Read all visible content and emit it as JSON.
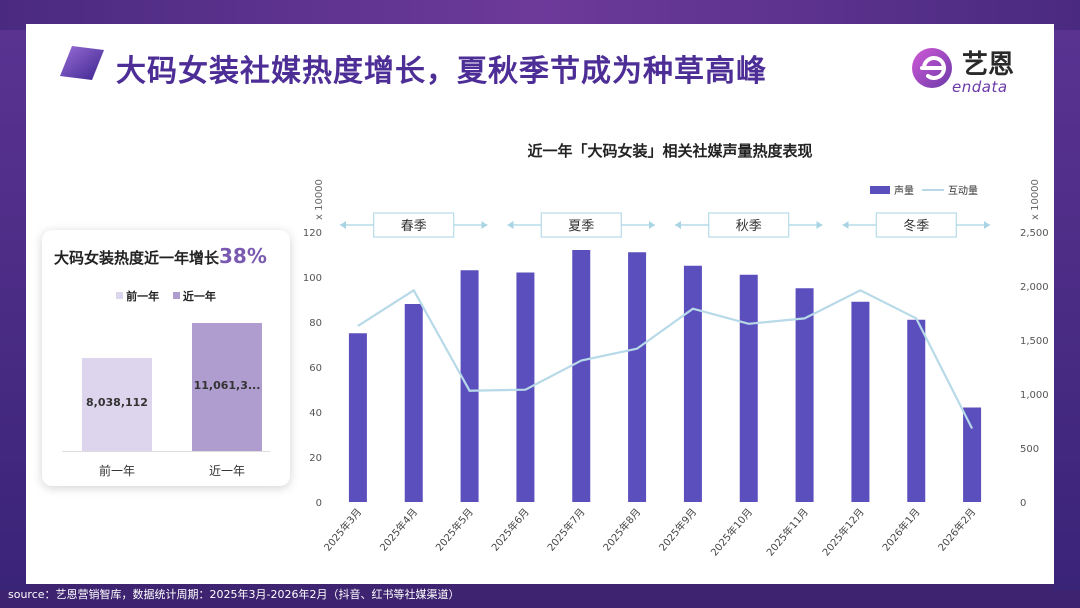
{
  "header": {
    "title": "大码女装社媒热度增长，夏秋季节成为种草高峰",
    "logo_cn": "艺恩",
    "logo_en": "endata"
  },
  "side_card": {
    "title_prefix": "大码女装热度近一年增长",
    "growth": "38%",
    "legend": [
      "前一年",
      "近一年"
    ],
    "bars": [
      {
        "category": "前一年",
        "label": "8,038,112",
        "value": 8038112,
        "color": "#ddd4ee"
      },
      {
        "category": "近一年",
        "label": "11,061,3...",
        "value": 11061300,
        "color": "#b09dd0"
      }
    ]
  },
  "chart_data": {
    "type": "bar",
    "title": "近一年「大码女装」相关社媒声量热度表现",
    "categories": [
      "2025年3月",
      "2025年4月",
      "2025年5月",
      "2025年6月",
      "2025年7月",
      "2025年8月",
      "2025年9月",
      "2025年10月",
      "2025年11月",
      "2025年12月",
      "2026年1月",
      "2026年2月"
    ],
    "series": [
      {
        "name": "声量",
        "type": "bar",
        "axis": "left",
        "color": "#5b4fbe",
        "values": [
          75,
          88,
          103,
          102,
          112,
          111,
          105,
          101,
          95,
          89,
          81,
          42
        ]
      },
      {
        "name": "互动量",
        "type": "line",
        "axis": "right",
        "color": "#b7d9e8",
        "values": [
          1630,
          1960,
          1030,
          1040,
          1310,
          1420,
          1790,
          1650,
          1700,
          1960,
          1700,
          680
        ]
      }
    ],
    "ylim": [
      0,
      120
    ],
    "yticks": [
      0,
      20,
      40,
      60,
      80,
      100,
      120
    ],
    "y2lim": [
      0,
      2500
    ],
    "y2ticks": [
      "0",
      "500",
      "1,000",
      "1,500",
      "2,000",
      "2,500"
    ],
    "ylabel": "x 10000",
    "y2label": "x 10000",
    "seasons": [
      {
        "label": "春季",
        "start": 0,
        "end": 2
      },
      {
        "label": "夏季",
        "start": 3,
        "end": 5
      },
      {
        "label": "秋季",
        "start": 6,
        "end": 8
      },
      {
        "label": "冬季",
        "start": 9,
        "end": 11
      }
    ],
    "legend_position": "top-right"
  },
  "footer": {
    "source": "source：艺恩营销智库，数据统计周期：2025年3月-2026年2月（抖音、红书等社媒渠道）"
  },
  "colors": {
    "accent": "#4d2d96",
    "bar": "#5b4fbe",
    "line": "#b7d9e8"
  }
}
